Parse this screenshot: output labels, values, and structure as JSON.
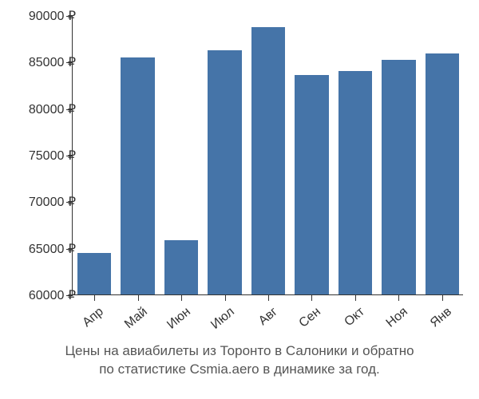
{
  "chart": {
    "type": "bar",
    "categories": [
      "Апр",
      "Май",
      "Июн",
      "Июл",
      "Авг",
      "Сен",
      "Окт",
      "Ноя",
      "Янв"
    ],
    "values": [
      64500,
      85500,
      65800,
      86200,
      88700,
      83600,
      84000,
      85200,
      85900
    ],
    "bar_color": "#4574a8",
    "ylim": [
      60000,
      90000
    ],
    "ytick_step": 5000,
    "ytick_labels": [
      "60000 ₽",
      "65000 ₽",
      "70000 ₽",
      "75000 ₽",
      "80000 ₽",
      "85000 ₽",
      "90000 ₽"
    ],
    "axis_color": "#333333",
    "background_color": "#ffffff",
    "label_fontsize": 16,
    "caption_fontsize": 17,
    "caption_color": "#555555",
    "bar_width_ratio": 0.78,
    "x_label_rotation": -40
  },
  "caption": {
    "line1": "Цены на авиабилеты из Торонто в Салоники и обратно",
    "line2": "по статистике Csmia.aero в динамике за год."
  }
}
